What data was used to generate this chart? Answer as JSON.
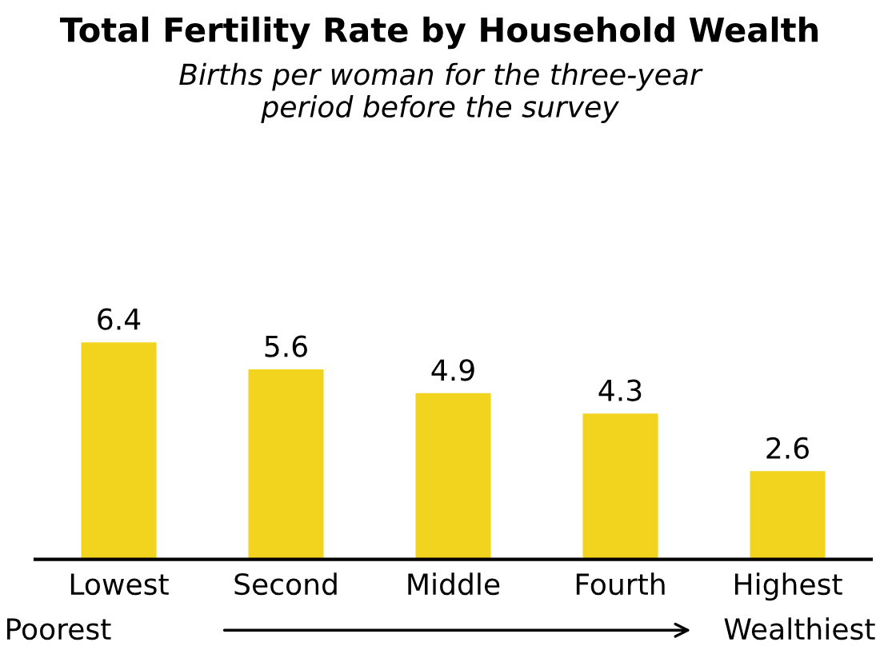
{
  "chart_data": {
    "type": "bar",
    "title": "Total Fertility Rate by Household Wealth",
    "subtitle": "Births per woman for the three-year\nperiod before the survey",
    "categories": [
      "Lowest",
      "Second",
      "Middle",
      "Fourth",
      "Highest"
    ],
    "values": [
      6.4,
      5.6,
      4.9,
      4.3,
      2.6
    ],
    "color": "#f2d41f",
    "data_labels": true,
    "grid": false,
    "legend": false,
    "annotations": [
      "Poorest",
      "Wealthiest"
    ]
  }
}
